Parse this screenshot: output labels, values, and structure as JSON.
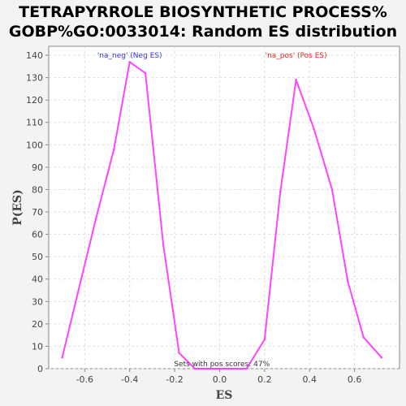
{
  "chart_data": {
    "type": "line",
    "title": "TETRAPYRROLE BIOSYNTHETIC PROCESS%",
    "subtitle": "GOBP%GO:0033014: Random ES distribution",
    "xlabel": "ES",
    "ylabel": "P(ES)",
    "xlim": [
      -0.76,
      0.8
    ],
    "ylim": [
      0,
      144
    ],
    "x_ticks": [
      -0.6,
      -0.4,
      -0.2,
      0.0,
      0.2,
      0.4,
      0.6
    ],
    "x_tick_labels": [
      "-0.6",
      "-0.4",
      "-0.2",
      "0.0",
      "0.2",
      "0.4",
      "0.6"
    ],
    "y_ticks": [
      0,
      10,
      20,
      30,
      40,
      50,
      60,
      70,
      80,
      90,
      100,
      110,
      120,
      130,
      140
    ],
    "y_tick_labels": [
      "0",
      "10",
      "20",
      "30",
      "40",
      "50",
      "60",
      "70",
      "80",
      "90",
      "100",
      "110",
      "120",
      "130",
      "140"
    ],
    "grid": true,
    "line_color": "#ff44ff",
    "series": [
      {
        "x": [
          -0.7,
          -0.63,
          -0.55,
          -0.47,
          -0.4,
          -0.33,
          -0.25,
          -0.18,
          -0.11,
          -0.04,
          0.04,
          0.12,
          0.2,
          0.27,
          0.34,
          0.42,
          0.5,
          0.57,
          0.64,
          0.72
        ],
        "y": [
          5,
          34,
          67,
          98,
          137,
          132,
          55,
          7,
          0,
          0,
          0,
          0,
          13,
          79,
          129,
          107,
          80,
          39,
          14,
          5
        ]
      }
    ],
    "annotations": [
      {
        "text": "'na_neg' (Neg ES)",
        "x": -0.4,
        "y": 139,
        "color": "#3333dd"
      },
      {
        "text": "'na_pos' (Pos ES)",
        "x": 0.34,
        "y": 139,
        "color": "#ee2222"
      },
      {
        "text": "Sets with pos scores: 47%",
        "x": 0.01,
        "y": 1,
        "color": "#333333"
      }
    ]
  }
}
